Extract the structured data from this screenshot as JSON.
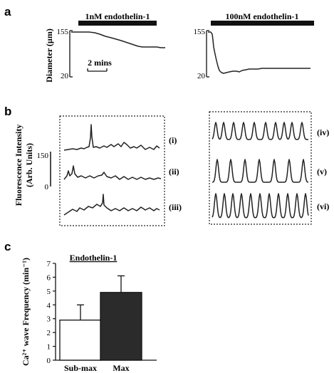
{
  "panels": {
    "a": "a",
    "b": "b",
    "c": "c"
  },
  "panel_a": {
    "ylabel": "Diameter (µm)",
    "left": {
      "bar_label": "1nM endothelin-1",
      "y_top": "155",
      "y_bottom": "20"
    },
    "right": {
      "bar_label": "100nM endothelin-1",
      "y_top": "155",
      "y_bottom": "20"
    },
    "scale_label": "2 mins",
    "colors": {
      "trace": "#222222",
      "bar": "#111111"
    }
  },
  "panel_b": {
    "ylabel_line1": "Fluorescence Intensity",
    "ylabel_line2": "(Arb. Units)",
    "scale_top": "150",
    "scale_bottom": "0",
    "left_traces": [
      "(i)",
      "(ii)",
      "(iii)"
    ],
    "right_traces": [
      "(iv)",
      "(v)",
      "(vi)"
    ]
  },
  "chart_data": {
    "type": "bar",
    "title": "Endothelin-1",
    "ylabel": "Ca²⁺ wave Frequency (min⁻¹)",
    "categories": [
      "Sub-max",
      "Max"
    ],
    "values": [
      2.9,
      4.9
    ],
    "errors": [
      1.1,
      1.2
    ],
    "ylim": [
      0,
      7
    ],
    "yticks": [
      "0",
      "1",
      "2",
      "3",
      "4",
      "5",
      "6",
      "7"
    ],
    "colors": [
      "#ffffff",
      "#2b2b2b"
    ]
  }
}
